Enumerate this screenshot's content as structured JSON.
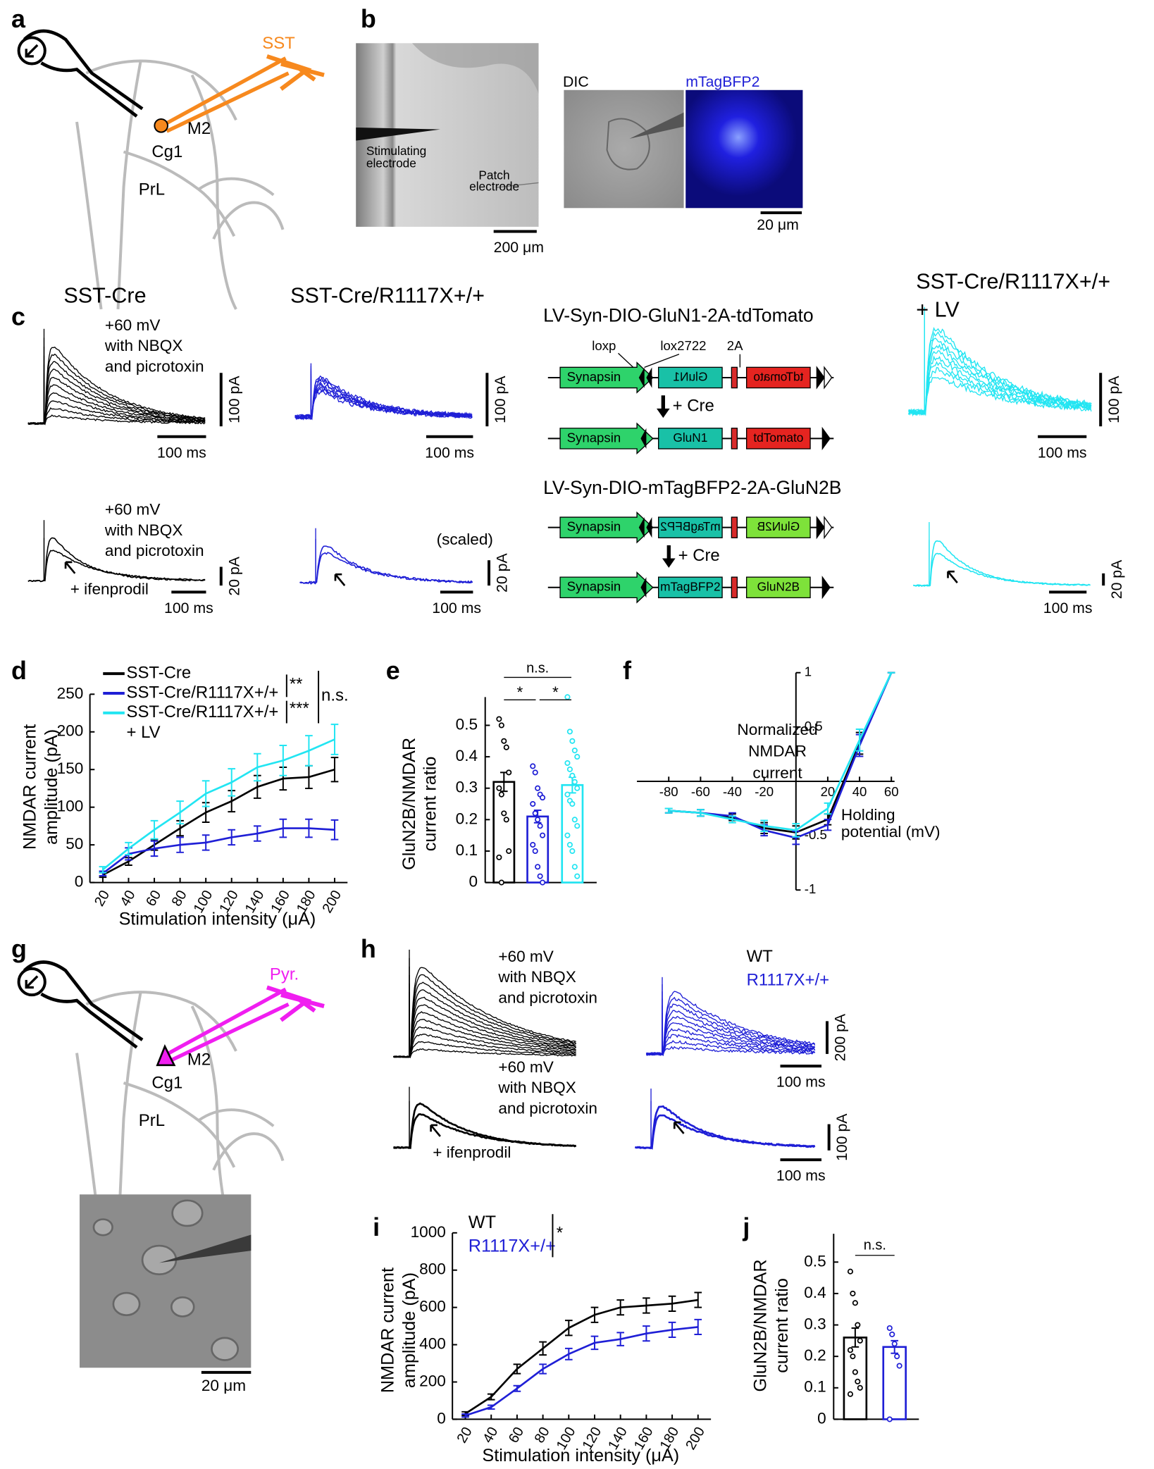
{
  "panel_letters": [
    "a",
    "b",
    "c",
    "d",
    "e",
    "f",
    "g",
    "h",
    "i",
    "j"
  ],
  "a": {
    "cell": "SST",
    "regions": [
      "M2",
      "Cg1",
      "PrL"
    ]
  },
  "b": {
    "stim": [
      "Stimulating",
      "electrode"
    ],
    "patch": [
      "Patch",
      "electrode"
    ],
    "scale_large": "200 μm",
    "dic": "DIC",
    "fluor": "mTagBFP2",
    "scale_small": "20 μm"
  },
  "c": {
    "titles": [
      "SST-Cre",
      "SST-Cre/R1117X+/+",
      "SST-Cre/R1117X+/+",
      "+ LV"
    ],
    "conditions": [
      "+60 mV",
      "with NBQX",
      "and picrotoxin"
    ],
    "ifenprodil": "+ ifenprodil",
    "scaled": "(scaled)",
    "scale_100pA": "100 pA",
    "scale_20pA": "20 pA",
    "scale_100ms": "100 ms",
    "construct1": "LV-Syn-DIO-GluN1-2A-tdTomato",
    "construct2": "LV-Syn-DIO-mTagBFP2-2A-GluN2B",
    "sites": [
      "loxp",
      "lox2722",
      "2A"
    ],
    "cre": "+ Cre",
    "elements": [
      "Synapsin",
      "GluN1",
      "tdTomato",
      "mTagBFP2",
      "GluN2B"
    ]
  },
  "g": {
    "cell": "Pyr.",
    "scale": "20 μm"
  },
  "h": {
    "wt": "WT",
    "mut": "R1117X+/+",
    "scale_200pA": "200 pA",
    "scale_100pA": "100 pA",
    "scale_100ms": "100 ms"
  },
  "chart_data": [
    {
      "type": "line",
      "xlabel": "Stimulation intensity (μA)",
      "ylabel": [
        "NMDAR current",
        "amplitude (pA)"
      ],
      "x": [
        20,
        40,
        60,
        80,
        100,
        120,
        140,
        160,
        180,
        200
      ],
      "xlim": [
        10,
        210
      ],
      "xticks": [
        20,
        40,
        60,
        80,
        100,
        120,
        140,
        160,
        180,
        200
      ],
      "ylim": [
        0,
        250
      ],
      "yticks": [
        0,
        50,
        100,
        150,
        200,
        250
      ],
      "series": [
        {
          "name": "SST-Cre",
          "color": "#000000",
          "values": [
            10,
            28,
            50,
            72,
            93,
            108,
            127,
            138,
            140,
            150
          ],
          "errors": [
            3,
            5,
            7,
            10,
            13,
            14,
            15,
            15,
            15,
            16
          ]
        },
        {
          "name": "SST-Cre/R1117X+/+",
          "color": "#1f1fd6",
          "values": [
            12,
            38,
            45,
            50,
            53,
            60,
            65,
            72,
            72,
            70
          ],
          "errors": [
            3,
            8,
            10,
            10,
            10,
            10,
            10,
            12,
            12,
            13
          ]
        },
        {
          "name": "SST-Cre/R1117X+/+ + LV",
          "color": "#22e5f2",
          "values": [
            17,
            45,
            70,
            93,
            118,
            133,
            153,
            162,
            175,
            190
          ],
          "errors": [
            4,
            8,
            12,
            15,
            17,
            18,
            18,
            20,
            20,
            20
          ]
        }
      ],
      "annotations": [
        "**",
        "***",
        "n.s."
      ]
    },
    {
      "type": "bar",
      "ylabel": [
        "GluN2B/NMDAR",
        "current ratio"
      ],
      "categories": [
        null,
        null,
        null
      ],
      "values": [
        0.32,
        0.21,
        0.31
      ],
      "errors": [
        0.03,
        0.02,
        0.025
      ],
      "colors": [
        "#000000",
        "#1f1fd6",
        "#22e5f2"
      ],
      "points": [
        [
          0.52,
          0.5,
          0.45,
          0.43,
          0.35,
          0.3,
          0.28,
          0.22,
          0.2,
          0.1,
          0.08,
          0
        ],
        [
          0.37,
          0.35,
          0.3,
          0.28,
          0.27,
          0.25,
          0.22,
          0.2,
          0.18,
          0.15,
          0.12,
          0.1,
          0.05,
          0.02,
          0
        ],
        [
          0.59,
          0.48,
          0.45,
          0.42,
          0.4,
          0.38,
          0.36,
          0.34,
          0.32,
          0.3,
          0.28,
          0.26,
          0.25,
          0.2,
          0.18,
          0.15,
          0.12,
          0.1,
          0.05,
          0.02
        ]
      ],
      "ylim": [
        0,
        0.59
      ],
      "yticks": [
        0,
        0.1,
        0.2,
        0.3,
        0.4,
        0.5
      ],
      "annotations": [
        "n.s.",
        "*",
        "*"
      ]
    },
    {
      "type": "line",
      "xlabel": [
        "Holding",
        "potential (mV)"
      ],
      "ylabel": [
        "Normalized",
        "NMDAR",
        "current"
      ],
      "x": [
        -80,
        -60,
        -40,
        -20,
        0,
        20,
        40,
        60
      ],
      "xlim": [
        -100,
        62
      ],
      "xticks": [
        -80,
        -60,
        -40,
        -20,
        20,
        40,
        60
      ],
      "ylim": [
        -1,
        1
      ],
      "yticks": [
        -1,
        -0.5,
        0.5,
        1
      ],
      "series": [
        {
          "color": "#000000",
          "values": [
            -0.27,
            -0.29,
            -0.33,
            -0.43,
            -0.47,
            -0.35,
            0.35,
            1
          ],
          "errors": [
            0.02,
            0.03,
            0.03,
            0.05,
            0.06,
            0.05,
            0.1,
            0
          ]
        },
        {
          "color": "#1f1fd6",
          "values": [
            -0.27,
            -0.29,
            -0.32,
            -0.45,
            -0.52,
            -0.4,
            0.33,
            1
          ],
          "errors": [
            0.02,
            0.03,
            0.03,
            0.05,
            0.06,
            0.05,
            0.1,
            0
          ]
        },
        {
          "color": "#22e5f2",
          "values": [
            -0.27,
            -0.29,
            -0.35,
            -0.41,
            -0.45,
            -0.25,
            0.38,
            1
          ],
          "errors": [
            0.02,
            0.03,
            0.03,
            0.05,
            0.06,
            0.05,
            0.1,
            0
          ]
        }
      ]
    },
    {
      "type": "line",
      "xlabel": "Stimulation intensity (μA)",
      "ylabel": [
        "NMDAR current",
        "amplitude (pA)"
      ],
      "x": [
        20,
        40,
        60,
        80,
        100,
        120,
        140,
        160,
        180,
        200
      ],
      "xlim": [
        10,
        210
      ],
      "xticks": [
        20,
        40,
        60,
        80,
        100,
        120,
        140,
        160,
        180,
        200
      ],
      "ylim": [
        0,
        1000
      ],
      "yticks": [
        0,
        200,
        400,
        600,
        800,
        1000
      ],
      "series": [
        {
          "name": "WT",
          "color": "#000000",
          "values": [
            30,
            120,
            270,
            380,
            490,
            560,
            600,
            610,
            620,
            640
          ],
          "errors": [
            10,
            15,
            25,
            35,
            40,
            40,
            40,
            40,
            40,
            40
          ]
        },
        {
          "name": "R1117X+/+",
          "color": "#1f1fd6",
          "values": [
            20,
            65,
            165,
            270,
            350,
            410,
            430,
            460,
            480,
            495
          ],
          "errors": [
            8,
            10,
            15,
            25,
            30,
            35,
            35,
            40,
            40,
            40
          ]
        }
      ],
      "annotations": [
        "*"
      ]
    },
    {
      "type": "bar",
      "ylabel": [
        "GluN2B/NMDAR",
        "current ratio"
      ],
      "categories": [
        null,
        null
      ],
      "values": [
        0.26,
        0.23
      ],
      "errors": [
        0.03,
        0.02
      ],
      "colors": [
        "#000000",
        "#1f1fd6"
      ],
      "points": [
        [
          0.47,
          0.4,
          0.37,
          0.3,
          0.25,
          0.22,
          0.2,
          0.15,
          0.12,
          0.1,
          0.08
        ],
        [
          0.29,
          0.27,
          0.24,
          0.2,
          0.17,
          0
        ]
      ],
      "ylim": [
        0,
        0.59
      ],
      "yticks": [
        0,
        0.1,
        0.2,
        0.3,
        0.4,
        0.5
      ],
      "annotations": [
        "n.s."
      ]
    }
  ]
}
